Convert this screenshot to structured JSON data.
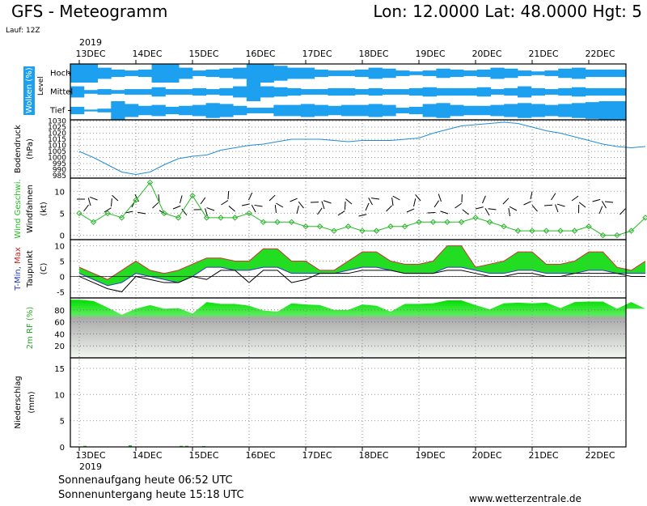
{
  "header": {
    "title": "GFS - Meteogramm",
    "coords": "Lon: 12.0000  Lat: 48.0000  Hgt: 5",
    "run": "Lauf: 12Z"
  },
  "footer": {
    "sunrise": "Sonnenaufgang heute 06:52 UTC",
    "sunset": "Sonnenuntergang heute 15:18 UTC",
    "website": "www.wetterzentrale.de"
  },
  "colors": {
    "cloud": "#1ea0f0",
    "pressure": "#1e8cdc",
    "wind": "#22bb22",
    "wind_marker": "#2db52d",
    "temp_fill": "#22dd22",
    "temp_max_fill": "#99dd33",
    "temp_min_fill": "#33cccc",
    "dewpoint": "#000000",
    "rh": "#11ee11",
    "frame": "#000000"
  },
  "chart_data": [
    {
      "type": "heatmap",
      "panel": "clouds",
      "ylabel": "Wolken (%)",
      "ylabel2": "Level",
      "levels": [
        "Hoch",
        "Mittel",
        "Tief"
      ],
      "year": "2019",
      "x_ticks": [
        "13DEC",
        "14DEC",
        "15DEC",
        "16DEC",
        "17DEC",
        "18DEC",
        "19DEC",
        "20DEC",
        "21DEC",
        "22DEC"
      ],
      "x_range_days": [
        0,
        10
      ],
      "coverage": {
        "Hoch": [
          100,
          100,
          60,
          40,
          30,
          40,
          100,
          100,
          60,
          30,
          40,
          50,
          60,
          100,
          100,
          80,
          60,
          60,
          40,
          30,
          30,
          40,
          60,
          50,
          30,
          20,
          30,
          50,
          40,
          30,
          40,
          60,
          50,
          30,
          20,
          30,
          50,
          60,
          40,
          40,
          40
        ],
        "Mittel": [
          60,
          20,
          30,
          20,
          30,
          30,
          50,
          30,
          30,
          40,
          30,
          40,
          60,
          100,
          60,
          50,
          40,
          30,
          30,
          40,
          40,
          30,
          40,
          30,
          30,
          40,
          50,
          40,
          40,
          40,
          50,
          30,
          40,
          60,
          40,
          30,
          40,
          50,
          40,
          40,
          40
        ],
        "Tief": [
          40,
          10,
          20,
          100,
          70,
          50,
          60,
          40,
          50,
          60,
          80,
          70,
          50,
          30,
          30,
          60,
          60,
          70,
          60,
          50,
          60,
          60,
          70,
          60,
          30,
          40,
          70,
          80,
          60,
          50,
          50,
          60,
          70,
          80,
          70,
          60,
          70,
          80,
          90,
          100,
          100
        ]
      }
    },
    {
      "type": "line",
      "panel": "pressure",
      "ylabel": "Bodendruck",
      "yunit": "(hPa)",
      "y_ticks": [
        985,
        990,
        995,
        1000,
        1005,
        1010,
        1015,
        1020,
        1025,
        1030
      ],
      "ylim": [
        983,
        1031
      ],
      "x_days": [
        0,
        0.25,
        0.5,
        0.75,
        1,
        1.25,
        1.5,
        1.75,
        2,
        2.25,
        2.5,
        2.75,
        3,
        3.25,
        3.5,
        3.75,
        4,
        4.25,
        4.5,
        4.75,
        5,
        5.25,
        5.5,
        5.75,
        6,
        6.25,
        6.5,
        6.75,
        7,
        7.25,
        7.5,
        7.75,
        8,
        8.25,
        8.5,
        8.75,
        9,
        9.25,
        9.5,
        9.75,
        10
      ],
      "values": [
        1005,
        1000,
        994,
        988,
        986,
        988,
        994,
        999,
        1001,
        1002,
        1006,
        1008,
        1010,
        1011,
        1013,
        1015,
        1015,
        1015,
        1014,
        1013,
        1014,
        1014,
        1014,
        1015,
        1016,
        1020,
        1023,
        1026,
        1027,
        1028,
        1029,
        1028,
        1025,
        1022,
        1020,
        1017,
        1014,
        1011,
        1009,
        1008,
        1009
      ]
    },
    {
      "type": "line",
      "panel": "wind",
      "ylabel": "Wind Geschwi.",
      "ylabel2": "Windfahnen",
      "yunit": "(kt)",
      "y_ticks": [
        0,
        5,
        10
      ],
      "ylim": [
        -1,
        13
      ],
      "x_days": [
        0,
        0.25,
        0.5,
        0.75,
        1,
        1.25,
        1.5,
        1.75,
        2,
        2.25,
        2.5,
        2.75,
        3,
        3.25,
        3.5,
        3.75,
        4,
        4.25,
        4.5,
        4.75,
        5,
        5.25,
        5.5,
        5.75,
        6,
        6.25,
        6.5,
        6.75,
        7,
        7.25,
        7.5,
        7.75,
        8,
        8.25,
        8.5,
        8.75,
        9,
        9.25,
        9.5,
        9.75,
        10
      ],
      "values": [
        5,
        3,
        5,
        4,
        8,
        12,
        5,
        4,
        9,
        4,
        4,
        4,
        5,
        3,
        3,
        3,
        2,
        2,
        1,
        2,
        1,
        1,
        2,
        2,
        3,
        3,
        3,
        3,
        4,
        3,
        2,
        1,
        1,
        1,
        1,
        1,
        2,
        0,
        0,
        1,
        4
      ]
    },
    {
      "type": "area",
      "panel": "temperature",
      "ylabel": "T-Min, Max",
      "ylabel2": "Taupunkt",
      "yunit": "(C)",
      "y_ticks": [
        -5,
        0,
        5,
        10
      ],
      "ylim": [
        -7,
        12
      ],
      "x_days": [
        0,
        0.25,
        0.5,
        0.75,
        1,
        1.25,
        1.5,
        1.75,
        2,
        2.25,
        2.5,
        2.75,
        3,
        3.25,
        3.5,
        3.75,
        4,
        4.25,
        4.5,
        4.75,
        5,
        5.25,
        5.5,
        5.75,
        6,
        6.25,
        6.5,
        6.75,
        7,
        7.25,
        7.5,
        7.75,
        8,
        8.25,
        8.5,
        8.75,
        9,
        9.25,
        9.5,
        9.75,
        10
      ],
      "series": [
        {
          "name": "T-Max",
          "values": [
            3,
            1,
            -1,
            2,
            5,
            2,
            1,
            2,
            4,
            6,
            6,
            5,
            5,
            9,
            9,
            5,
            5,
            2,
            2,
            5,
            8,
            8,
            5,
            4,
            4,
            5,
            10,
            10,
            3,
            4,
            5,
            8,
            8,
            4,
            4,
            5,
            8,
            8,
            3,
            2,
            5
          ]
        },
        {
          "name": "T-Min",
          "values": [
            1,
            -1,
            -3,
            -2,
            1,
            0,
            -1,
            -2,
            0,
            3,
            3,
            2,
            2,
            3,
            3,
            1,
            1,
            1,
            1,
            2,
            3,
            3,
            2,
            1,
            1,
            1,
            3,
            3,
            2,
            1,
            1,
            2,
            2,
            1,
            1,
            1,
            2,
            2,
            1,
            1,
            1
          ]
        },
        {
          "name": "Taupunkt",
          "values": [
            0,
            -2,
            -4,
            -5,
            0,
            -1,
            -2,
            -2,
            0,
            -1,
            2,
            2,
            -2,
            2,
            2,
            -2,
            -1,
            1,
            1,
            1,
            2,
            2,
            2,
            1,
            1,
            1,
            2,
            2,
            1,
            0,
            0,
            1,
            1,
            0,
            0,
            1,
            1,
            1,
            1,
            0,
            0
          ]
        }
      ]
    },
    {
      "type": "area",
      "panel": "humidity",
      "ylabel": "2m RF (%)",
      "y_ticks": [
        20,
        40,
        60,
        80
      ],
      "ylim": [
        0,
        100
      ],
      "x_days": [
        0,
        0.25,
        0.5,
        0.75,
        1,
        1.25,
        1.5,
        1.75,
        2,
        2.25,
        2.5,
        2.75,
        3,
        3.25,
        3.5,
        3.75,
        4,
        4.25,
        4.5,
        4.75,
        5,
        5.25,
        5.5,
        5.75,
        6,
        6.25,
        6.5,
        6.75,
        7,
        7.25,
        7.5,
        7.75,
        8,
        8.25,
        8.5,
        8.75,
        9,
        9.25,
        9.5,
        9.75,
        10
      ],
      "values": [
        97,
        95,
        84,
        72,
        82,
        88,
        82,
        83,
        74,
        93,
        90,
        90,
        87,
        79,
        77,
        91,
        89,
        88,
        80,
        80,
        89,
        87,
        77,
        90,
        90,
        91,
        96,
        96,
        88,
        81,
        91,
        92,
        91,
        92,
        83,
        93,
        94,
        94,
        82,
        93,
        82
      ]
    },
    {
      "type": "bar",
      "panel": "precipitation",
      "ylabel": "Niederschlag",
      "yunit": "(mm)",
      "y_ticks": [
        0,
        5,
        10,
        15
      ],
      "ylim": [
        0,
        17
      ],
      "year": "2019",
      "x_ticks": [
        "13DEC",
        "14DEC",
        "15DEC",
        "16DEC",
        "17DEC",
        "18DEC",
        "19DEC",
        "20DEC",
        "21DEC",
        "22DEC"
      ],
      "x_days": [
        0.1,
        0.9,
        1.8,
        1.9,
        2.2
      ],
      "values": [
        0.2,
        0.3,
        0.2,
        0.2,
        0.1
      ]
    }
  ]
}
